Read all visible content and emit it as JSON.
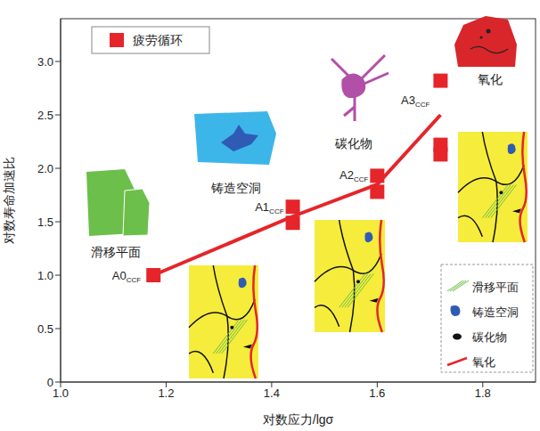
{
  "chart_data": {
    "type": "scatter",
    "xlabel": "对数应力/lgσ",
    "ylabel": "对数寿命加速比",
    "xlim": [
      1.0,
      1.9
    ],
    "xticks": [
      {
        "value": 1.0,
        "label": "1.0"
      },
      1.2,
      1.4,
      1.6,
      1.8
    ],
    "ylim": [
      0,
      3.4
    ],
    "yticks": [
      0,
      0.5,
      {
        "value": 1.0,
        "label": "1.0"
      },
      1.5,
      {
        "value": 2.0,
        "label": "2.0"
      },
      2.5,
      {
        "value": 3.0,
        "label": "3.0"
      }
    ],
    "legend": "upper left",
    "series": [
      {
        "name": "疲劳循环",
        "type": "scatter",
        "marker": "square",
        "color": "#e5252a",
        "x": [
          1.176,
          1.44,
          1.44,
          1.6,
          1.6,
          1.72,
          1.72,
          1.72
        ],
        "values": [
          1.0,
          1.49,
          1.64,
          1.78,
          1.93,
          2.13,
          2.22,
          2.82
        ]
      },
      {
        "type": "line",
        "color": "#e5252a",
        "x": [
          1.176,
          1.44,
          1.6,
          1.72
        ],
        "values": [
          1.0,
          1.55,
          1.85,
          2.5
        ],
        "point_labels": [
          {
            "text": "A0",
            "sub": "CCF"
          },
          {
            "text": "A1",
            "sub": "CCF"
          },
          {
            "text": "A2",
            "sub": "CCF"
          },
          {
            "text": "A3",
            "sub": "CCF"
          }
        ]
      }
    ],
    "annotations": [
      {
        "text": "滑移平面",
        "color": "#6cbf4a"
      },
      {
        "text": "铸造空洞",
        "color": "#3cb6e8"
      },
      {
        "text": "碳化物",
        "color": "#b24fa6"
      },
      {
        "text": "氧化",
        "color": "#d8262b"
      }
    ],
    "feature_legend": {
      "entries": [
        {
          "text": "滑移平面",
          "color": "#6cbf4a"
        },
        {
          "text": "铸造空洞",
          "color": "#2f5bb5"
        },
        {
          "text": "碳化物",
          "color": "#111111"
        },
        {
          "text": "氧化",
          "color": "#e5252a"
        }
      ]
    }
  }
}
